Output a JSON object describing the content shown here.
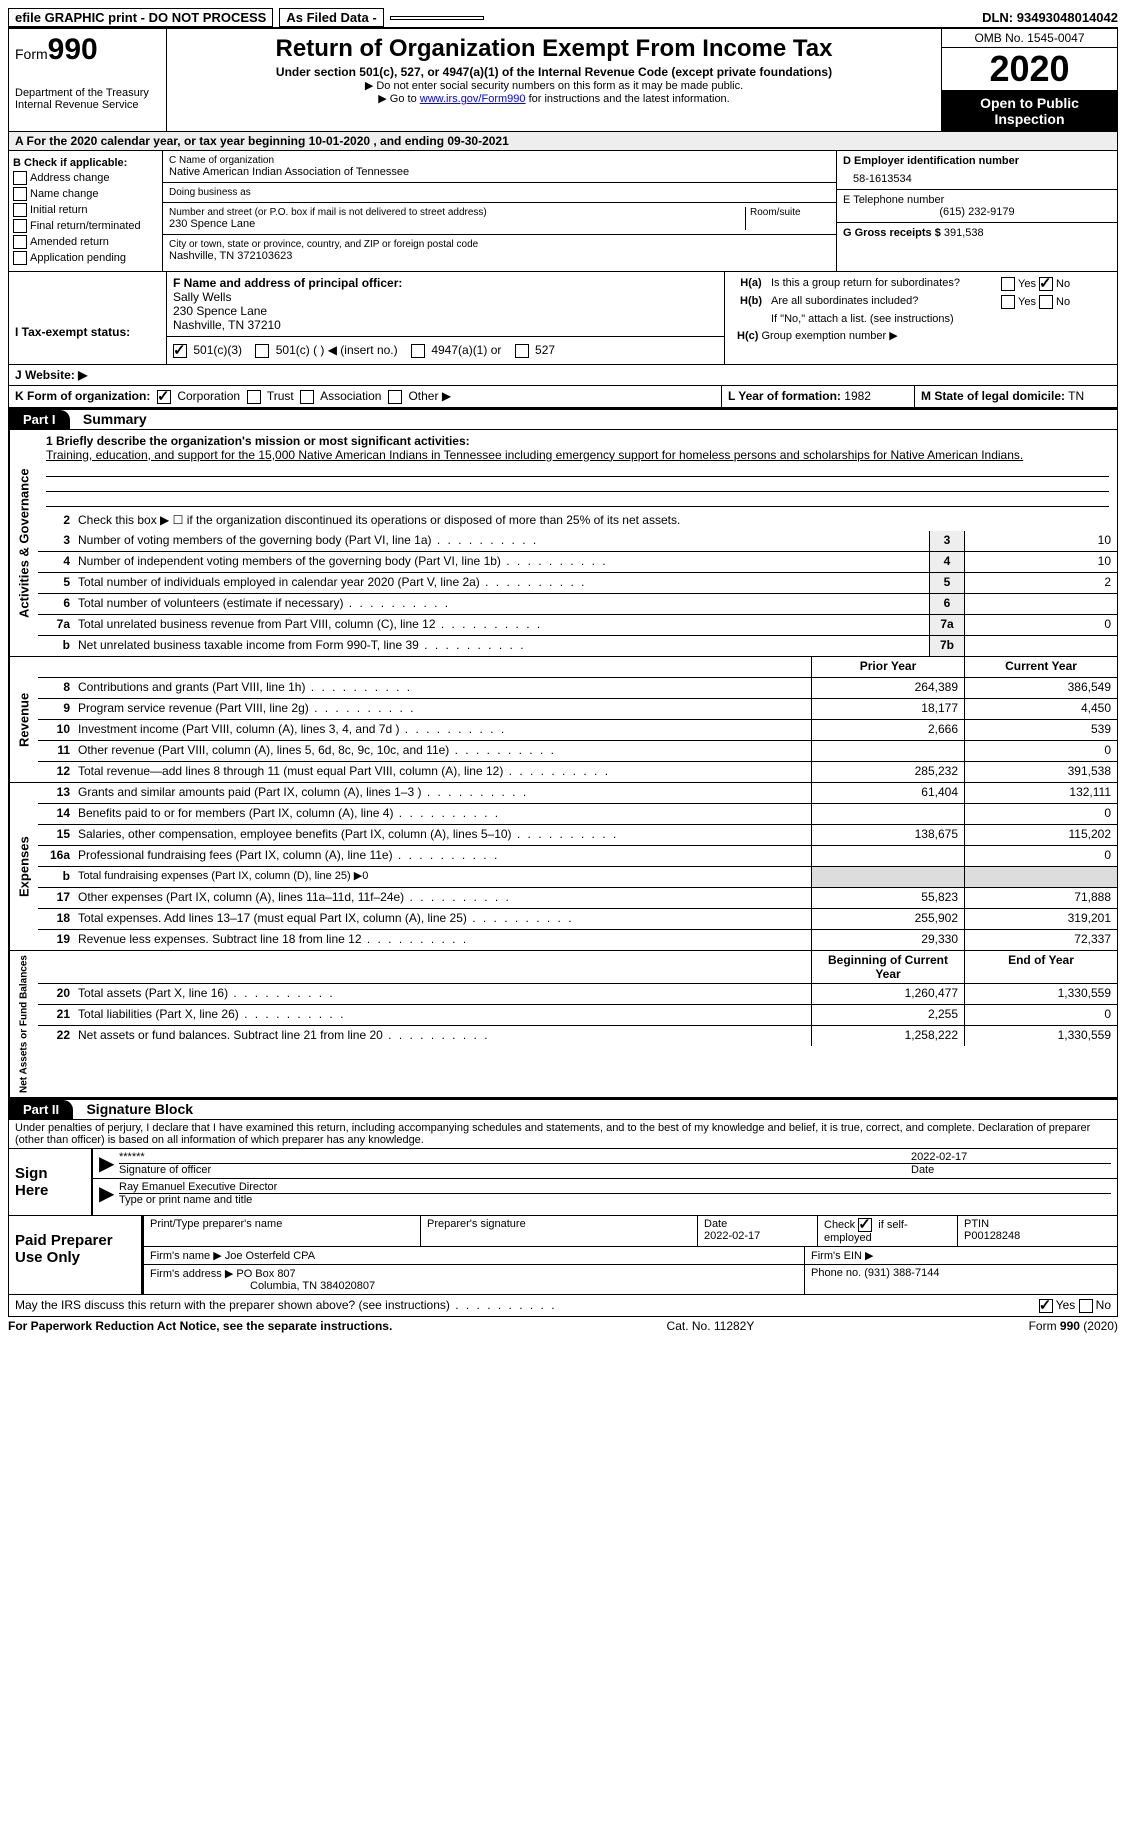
{
  "topbar": {
    "efile": "efile GRAPHIC print - DO NOT PROCESS",
    "asfiled": "As Filed Data -",
    "dln_label": "DLN:",
    "dln": "93493048014042"
  },
  "header": {
    "form_prefix": "Form",
    "form_number": "990",
    "dept": "Department of the Treasury\nInternal Revenue Service",
    "title": "Return of Organization Exempt From Income Tax",
    "sub": "Under section 501(c), 527, or 4947(a)(1) of the Internal Revenue Code (except private foundations)",
    "arrow1": "▶ Do not enter social security numbers on this form as it may be made public.",
    "arrow2_pre": "▶ Go to ",
    "arrow2_link": "www.irs.gov/Form990",
    "arrow2_post": " for instructions and the latest information.",
    "omb": "OMB No. 1545-0047",
    "year": "2020",
    "open": "Open to Public Inspection"
  },
  "section_a": "A   For the 2020 calendar year, or tax year beginning 10-01-2020   , and ending 09-30-2021",
  "col_b": {
    "title": "B Check if applicable:",
    "items": [
      "Address change",
      "Name change",
      "Initial return",
      "Final return/terminated",
      "Amended return",
      "Application pending"
    ]
  },
  "col_c": {
    "c_label": "C Name of organization",
    "c_name": "Native American Indian Association of Tennessee",
    "dba_label": "Doing business as",
    "dba": "",
    "addr_label": "Number and street (or P.O. box if mail is not delivered to street address)",
    "addr": "230 Spence Lane",
    "room_label": "Room/suite",
    "city_label": "City or town, state or province, country, and ZIP or foreign postal code",
    "city": "Nashville, TN  372103623",
    "f_label": "F  Name and address of principal officer:",
    "f_name": "Sally Wells",
    "f_addr1": "230 Spence Lane",
    "f_addr2": "Nashville, TN  37210"
  },
  "col_right": {
    "d_label": "D Employer identification number",
    "d_val": "58-1613534",
    "e_label": "E Telephone number",
    "e_val": "(615) 232-9179",
    "g_label": "G Gross receipts $",
    "g_val": "391,538",
    "ha_label": "H(a)  Is this a group return for subordinates?",
    "hb_label": "H(b)  Are all subordinates included?",
    "hb_note": "If \"No,\" attach a list. (see instructions)",
    "hc_label": "H(c)  Group exemption number ▶"
  },
  "row_i": {
    "label": "I   Tax-exempt status:",
    "opts": [
      "501(c)(3)",
      "501(c) (   ) ◀ (insert no.)",
      "4947(a)(1) or",
      "527"
    ]
  },
  "row_j": {
    "label": "J   Website: ▶"
  },
  "row_k": {
    "label": "K Form of organization:",
    "opts": [
      "Corporation",
      "Trust",
      "Association",
      "Other ▶"
    ],
    "l_label": "L Year of formation:",
    "l_val": "1982",
    "m_label": "M State of legal domicile:",
    "m_val": "TN"
  },
  "part1": {
    "header": "Part I",
    "title": "Summary"
  },
  "mission": {
    "line1_label": "1 Briefly describe the organization's mission or most significant activities:",
    "text": "Training, education, and support for the 15,000 Native American Indians in Tennessee including emergency support for homeless persons and scholarships for Native American Indians."
  },
  "gov_lines": [
    {
      "n": "2",
      "d": "Check this box ▶ ☐ if the organization discontinued its operations or disposed of more than 25% of its net assets."
    },
    {
      "n": "3",
      "d": "Number of voting members of the governing body (Part VI, line 1a)",
      "box": "3",
      "v": "10"
    },
    {
      "n": "4",
      "d": "Number of independent voting members of the governing body (Part VI, line 1b)",
      "box": "4",
      "v": "10"
    },
    {
      "n": "5",
      "d": "Total number of individuals employed in calendar year 2020 (Part V, line 2a)",
      "box": "5",
      "v": "2"
    },
    {
      "n": "6",
      "d": "Total number of volunteers (estimate if necessary)",
      "box": "6",
      "v": ""
    },
    {
      "n": "7a",
      "d": "Total unrelated business revenue from Part VIII, column (C), line 12",
      "box": "7a",
      "v": "0"
    },
    {
      "n": "b",
      "d": "Net unrelated business taxable income from Form 990-T, line 39",
      "box": "7b",
      "v": ""
    }
  ],
  "col_headers": {
    "prior": "Prior Year",
    "current": "Current Year"
  },
  "revenue": [
    {
      "n": "8",
      "d": "Contributions and grants (Part VIII, line 1h)",
      "p": "264,389",
      "c": "386,549"
    },
    {
      "n": "9",
      "d": "Program service revenue (Part VIII, line 2g)",
      "p": "18,177",
      "c": "4,450"
    },
    {
      "n": "10",
      "d": "Investment income (Part VIII, column (A), lines 3, 4, and 7d )",
      "p": "2,666",
      "c": "539"
    },
    {
      "n": "11",
      "d": "Other revenue (Part VIII, column (A), lines 5, 6d, 8c, 9c, 10c, and 11e)",
      "p": "",
      "c": "0"
    },
    {
      "n": "12",
      "d": "Total revenue—add lines 8 through 11 (must equal Part VIII, column (A), line 12)",
      "p": "285,232",
      "c": "391,538"
    }
  ],
  "expenses": [
    {
      "n": "13",
      "d": "Grants and similar amounts paid (Part IX, column (A), lines 1–3 )",
      "p": "61,404",
      "c": "132,111"
    },
    {
      "n": "14",
      "d": "Benefits paid to or for members (Part IX, column (A), line 4)",
      "p": "",
      "c": "0"
    },
    {
      "n": "15",
      "d": "Salaries, other compensation, employee benefits (Part IX, column (A), lines 5–10)",
      "p": "138,675",
      "c": "115,202"
    },
    {
      "n": "16a",
      "d": "Professional fundraising fees (Part IX, column (A), line 11e)",
      "p": "",
      "c": "0"
    },
    {
      "n": "b",
      "d": "Total fundraising expenses (Part IX, column (D), line 25) ▶0",
      "p": null,
      "c": null
    },
    {
      "n": "17",
      "d": "Other expenses (Part IX, column (A), lines 11a–11d, 11f–24e)",
      "p": "55,823",
      "c": "71,888"
    },
    {
      "n": "18",
      "d": "Total expenses. Add lines 13–17 (must equal Part IX, column (A), line 25)",
      "p": "255,902",
      "c": "319,201"
    },
    {
      "n": "19",
      "d": "Revenue less expenses. Subtract line 18 from line 12",
      "p": "29,330",
      "c": "72,337"
    }
  ],
  "net_headers": {
    "begin": "Beginning of Current Year",
    "end": "End of Year"
  },
  "net": [
    {
      "n": "20",
      "d": "Total assets (Part X, line 16)",
      "p": "1,260,477",
      "c": "1,330,559"
    },
    {
      "n": "21",
      "d": "Total liabilities (Part X, line 26)",
      "p": "2,255",
      "c": "0"
    },
    {
      "n": "22",
      "d": "Net assets or fund balances. Subtract line 21 from line 20",
      "p": "1,258,222",
      "c": "1,330,559"
    }
  ],
  "part2": {
    "header": "Part II",
    "title": "Signature Block"
  },
  "sig": {
    "penalty": "Under penalties of perjury, I declare that I have examined this return, including accompanying schedules and statements, and to the best of my knowledge and belief, it is true, correct, and complete. Declaration of preparer (other than officer) is based on all information of which preparer has any knowledge.",
    "sign_here": "Sign Here",
    "stars": "******",
    "sig_officer": "Signature of officer",
    "date": "2022-02-17",
    "date_label": "Date",
    "name": "Ray Emanuel Executive Director",
    "name_label": "Type or print name and title",
    "paid": "Paid Preparer Use Only",
    "prep_name_label": "Print/Type preparer's name",
    "prep_sig_label": "Preparer's signature",
    "prep_date_label": "Date",
    "prep_date": "2022-02-17",
    "check_label": "Check ☑ if self-employed",
    "ptin_label": "PTIN",
    "ptin": "P00128248",
    "firm_name_label": "Firm's name    ▶",
    "firm_name": "Joe Osterfeld CPA",
    "firm_ein_label": "Firm's EIN ▶",
    "firm_addr_label": "Firm's address ▶",
    "firm_addr1": "PO Box 807",
    "firm_addr2": "Columbia, TN  384020807",
    "phone_label": "Phone no.",
    "phone": "(931) 388-7144",
    "may_irs": "May the IRS discuss this return with the preparer shown above? (see instructions)"
  },
  "footer": {
    "left": "For Paperwork Reduction Act Notice, see the separate instructions.",
    "mid": "Cat. No. 11282Y",
    "right": "Form 990 (2020)"
  }
}
